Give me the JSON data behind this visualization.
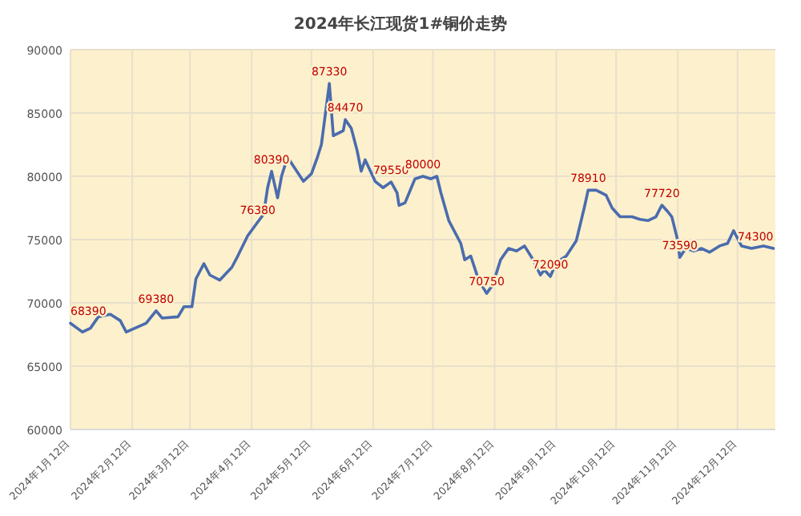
{
  "chart_data": {
    "type": "line",
    "title": "2024年长江现货1#铜价走势",
    "color": "#4a6cae",
    "grid": true,
    "xlim": [
      "2024-01-12",
      "2024-12-31"
    ],
    "xticks": [
      {
        "value": "2024-01-12",
        "label": "2024年1月12日"
      },
      {
        "value": "2024-02-12",
        "label": "2024年2月12日"
      },
      {
        "value": "2024-03-12",
        "label": "2024年3月12日"
      },
      {
        "value": "2024-04-12",
        "label": "2024年4月12日"
      },
      {
        "value": "2024-05-12",
        "label": "2024年5月12日"
      },
      {
        "value": "2024-06-12",
        "label": "2024年6月12日"
      },
      {
        "value": "2024-07-12",
        "label": "2024年7月12日"
      },
      {
        "value": "2024-08-12",
        "label": "2024年8月12日"
      },
      {
        "value": "2024-09-12",
        "label": "2024年9月12日"
      },
      {
        "value": "2024-10-12",
        "label": "2024年10月12日"
      },
      {
        "value": "2024-11-12",
        "label": "2024年11月12日"
      },
      {
        "value": "2024-12-12",
        "label": "2024年12月12日"
      }
    ],
    "ylim": [
      60000,
      90000
    ],
    "yticks": [
      60000,
      65000,
      70000,
      75000,
      80000,
      85000,
      90000
    ],
    "x": [
      "2024-01-12",
      "2024-01-18",
      "2024-01-22",
      "2024-01-26",
      "2024-02-01",
      "2024-02-06",
      "2024-02-09",
      "2024-02-19",
      "2024-02-24",
      "2024-02-27",
      "2024-03-06",
      "2024-03-09",
      "2024-03-13",
      "2024-03-15",
      "2024-03-19",
      "2024-03-22",
      "2024-03-27",
      "2024-04-02",
      "2024-04-05",
      "2024-04-10",
      "2024-04-15",
      "2024-04-18",
      "2024-04-20",
      "2024-04-22",
      "2024-04-25",
      "2024-04-27",
      "2024-04-30",
      "2024-05-08",
      "2024-05-12",
      "2024-05-15",
      "2024-05-17",
      "2024-05-21",
      "2024-05-23",
      "2024-05-28",
      "2024-05-29",
      "2024-06-01",
      "2024-06-04",
      "2024-06-06",
      "2024-06-08",
      "2024-06-13",
      "2024-06-17",
      "2024-06-21",
      "2024-06-24",
      "2024-06-25",
      "2024-06-28",
      "2024-07-03",
      "2024-07-07",
      "2024-07-11",
      "2024-07-14",
      "2024-07-16",
      "2024-07-20",
      "2024-07-26",
      "2024-07-28",
      "2024-07-31",
      "2024-08-04",
      "2024-08-08",
      "2024-08-11",
      "2024-08-15",
      "2024-08-19",
      "2024-08-23",
      "2024-08-27",
      "2024-08-31",
      "2024-09-04",
      "2024-09-06",
      "2024-09-09",
      "2024-09-12",
      "2024-09-17",
      "2024-09-22",
      "2024-09-26",
      "2024-09-28",
      "2024-10-02",
      "2024-10-07",
      "2024-10-10",
      "2024-10-14",
      "2024-10-20",
      "2024-10-24",
      "2024-10-28",
      "2024-11-01",
      "2024-11-04",
      "2024-11-07",
      "2024-11-09",
      "2024-11-12",
      "2024-11-13",
      "2024-11-16",
      "2024-11-20",
      "2024-11-24",
      "2024-11-28",
      "2024-12-03",
      "2024-12-07",
      "2024-12-10",
      "2024-12-14",
      "2024-12-19",
      "2024-12-25",
      "2024-12-30"
    ],
    "values": [
      68390,
      67700,
      68000,
      68900,
      69100,
      68600,
      67700,
      68400,
      69380,
      68800,
      68900,
      69700,
      69700,
      71900,
      73100,
      72200,
      71800,
      72800,
      73700,
      75300,
      76380,
      77000,
      79100,
      80390,
      78300,
      80000,
      81500,
      79600,
      80200,
      81500,
      82500,
      87330,
      83200,
      83600,
      84470,
      83800,
      82000,
      80400,
      81300,
      79600,
      79100,
      79550,
      78700,
      77700,
      77900,
      79800,
      80000,
      79800,
      80000,
      78700,
      76500,
      74700,
      73400,
      73700,
      71800,
      70750,
      71400,
      73400,
      74300,
      74100,
      74500,
      73500,
      72200,
      72600,
      72090,
      73200,
      73700,
      74900,
      77500,
      78910,
      78900,
      78500,
      77500,
      76800,
      76800,
      76600,
      76500,
      76800,
      77720,
      77200,
      76800,
      74900,
      73590,
      74300,
      74100,
      74300,
      74000,
      74500,
      74700,
      75700,
      74500,
      74300,
      74500,
      74300
    ],
    "value_labels": [
      "68390",
      null,
      null,
      null,
      null,
      null,
      null,
      null,
      "69380",
      null,
      null,
      null,
      null,
      null,
      null,
      null,
      null,
      null,
      null,
      null,
      "76380",
      null,
      null,
      "80390",
      null,
      null,
      null,
      null,
      null,
      null,
      null,
      "87330",
      null,
      null,
      "84470",
      null,
      null,
      null,
      null,
      null,
      null,
      "79550",
      null,
      null,
      null,
      null,
      "80000",
      null,
      null,
      null,
      null,
      null,
      null,
      null,
      null,
      "70750",
      null,
      null,
      null,
      null,
      null,
      null,
      null,
      null,
      "72090",
      null,
      null,
      null,
      null,
      "78910",
      null,
      null,
      null,
      null,
      null,
      null,
      null,
      null,
      "77720",
      null,
      null,
      null,
      "73590",
      null,
      null,
      null,
      null,
      null,
      null,
      null,
      null,
      null,
      null,
      "74300"
    ]
  }
}
